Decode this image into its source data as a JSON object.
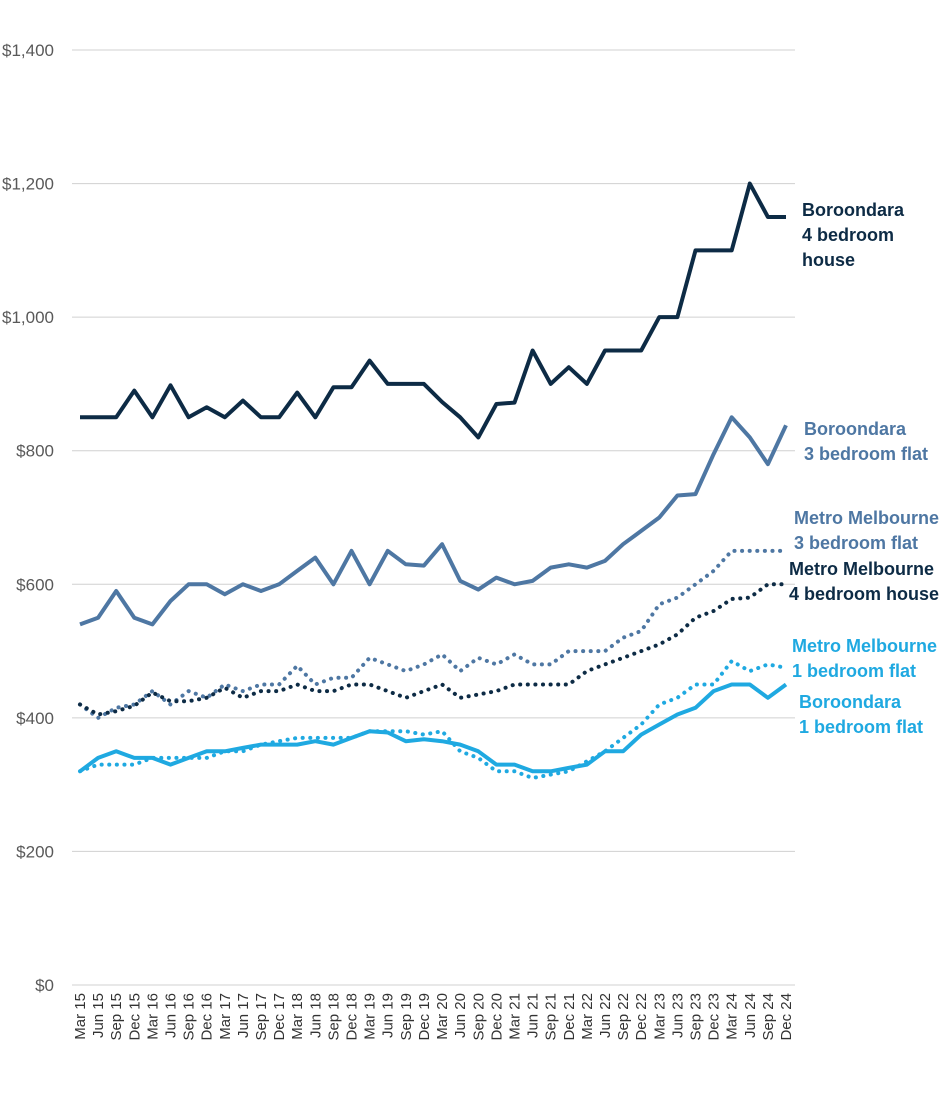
{
  "chart_data": {
    "type": "line",
    "title": "",
    "xlabel": "",
    "ylabel": "",
    "ylim": [
      0,
      1400
    ],
    "yticks": [
      0,
      200,
      400,
      600,
      800,
      1000,
      1200,
      1400
    ],
    "ytick_labels": [
      "$0",
      "$200",
      "$400",
      "$600",
      "$800",
      "$1,000",
      "$1,200",
      "$1,400"
    ],
    "grid": true,
    "categories": [
      "Mar 15",
      "Jun 15",
      "Sep 15",
      "Dec 15",
      "Mar 16",
      "Jun 16",
      "Sep 16",
      "Dec 16",
      "Mar 17",
      "Jun 17",
      "Sep 17",
      "Dec 17",
      "Mar 18",
      "Jun 18",
      "Sep 18",
      "Dec 18",
      "Mar 19",
      "Jun 19",
      "Sep 19",
      "Dec 19",
      "Mar 20",
      "Jun 20",
      "Sep 20",
      "Dec 20",
      "Mar 21",
      "Jun 21",
      "Sep 21",
      "Dec 21",
      "Mar 22",
      "Jun 22",
      "Sep 22",
      "Dec 22",
      "Mar 23",
      "Jun 23",
      "Sep 23",
      "Dec 23",
      "Mar 24",
      "Jun 24",
      "Sep 24",
      "Dec 24"
    ],
    "x_tick_labels": [
      "Mar 15",
      "Jun 15",
      "Sep 15",
      "Dec 15",
      "Mar 16",
      "Jun 16",
      "Sep 16",
      "Dec 16",
      "Mar 17",
      "Jun 17",
      "Sep 17",
      "Dec 17",
      "Mar 18",
      "Jun 18",
      "Sep 18",
      "Dec 18",
      "Mar 19",
      "Jun 19",
      "Sep 19",
      "Dec 19",
      "Mar 20",
      "Jun 20",
      "Sep 20",
      "Dec 20",
      "Mar 21",
      "Jun 21",
      "Sep 21",
      "Dec 21",
      "Mar 22",
      "Jun 22",
      "Sep 22",
      "Dec 22",
      "Mar 23",
      "Jun 23",
      "Sep 23",
      "Dec 23",
      "Mar 24",
      "Jun 24",
      "Sep 24",
      "Dec 24"
    ],
    "series": [
      {
        "key": "boroondara-4br-house",
        "name_lines": [
          "Boroondara",
          "4 bedroom",
          "house"
        ],
        "color": "#0d2b45",
        "style": "solid",
        "values": [
          850,
          850,
          850,
          890,
          850,
          898,
          850,
          865,
          850,
          875,
          850,
          850,
          887,
          850,
          895,
          895,
          935,
          900,
          900,
          900,
          873,
          850,
          820,
          870,
          872,
          950,
          900,
          925,
          900,
          950,
          950,
          950,
          1000,
          1000,
          1100,
          1100,
          1100,
          1200,
          1150,
          1150
        ]
      },
      {
        "key": "boroondara-3br-flat",
        "name_lines": [
          "Boroondara",
          "3 bedroom flat"
        ],
        "color": "#4e77a3",
        "style": "solid",
        "values": [
          540,
          550,
          590,
          550,
          540,
          575,
          600,
          600,
          585,
          600,
          590,
          600,
          620,
          640,
          600,
          650,
          600,
          650,
          630,
          628,
          660,
          605,
          592,
          610,
          600,
          605,
          625,
          630,
          625,
          635,
          660,
          680,
          700,
          733,
          735,
          795,
          850,
          820,
          780,
          838
        ]
      },
      {
        "key": "metro-3br-flat",
        "name_lines": [
          "Metro Melbourne",
          "3 bedroom flat"
        ],
        "color": "#4e77a3",
        "style": "dotted",
        "values": [
          420,
          400,
          415,
          420,
          440,
          420,
          440,
          430,
          450,
          440,
          450,
          450,
          478,
          450,
          460,
          460,
          490,
          480,
          470,
          480,
          495,
          470,
          490,
          480,
          495,
          480,
          480,
          500,
          500,
          500,
          520,
          530,
          570,
          580,
          600,
          620,
          650,
          650,
          650,
          650
        ]
      },
      {
        "key": "metro-4br-house",
        "name_lines": [
          "Metro Melbourne",
          "4 bedroom house"
        ],
        "color": "#0d2b45",
        "style": "dotted",
        "values": [
          420,
          405,
          410,
          418,
          438,
          425,
          425,
          430,
          445,
          430,
          440,
          440,
          450,
          440,
          440,
          450,
          450,
          440,
          430,
          440,
          450,
          430,
          435,
          440,
          450,
          450,
          450,
          450,
          470,
          480,
          490,
          500,
          510,
          525,
          550,
          560,
          578,
          580,
          600,
          600
        ]
      },
      {
        "key": "metro-1br-flat",
        "name_lines": [
          "Metro Melbourne",
          "1 bedroom flat"
        ],
        "color": "#1fa9e1",
        "style": "dotted",
        "values": [
          320,
          330,
          330,
          330,
          340,
          340,
          340,
          340,
          350,
          350,
          360,
          365,
          370,
          370,
          370,
          370,
          380,
          380,
          380,
          375,
          380,
          350,
          340,
          320,
          320,
          310,
          315,
          320,
          335,
          350,
          370,
          390,
          420,
          430,
          450,
          450,
          485,
          470,
          480,
          475
        ]
      },
      {
        "key": "boroondara-1br-flat",
        "name_lines": [
          "Boroondara",
          "1 bedroom flat"
        ],
        "color": "#1fa9e1",
        "style": "solid",
        "values": [
          320,
          340,
          350,
          340,
          340,
          330,
          340,
          350,
          350,
          355,
          360,
          360,
          360,
          365,
          360,
          370,
          380,
          378,
          365,
          368,
          365,
          360,
          350,
          330,
          330,
          320,
          320,
          325,
          330,
          350,
          350,
          375,
          390,
          405,
          415,
          440,
          450,
          450,
          430,
          450
        ]
      }
    ]
  }
}
